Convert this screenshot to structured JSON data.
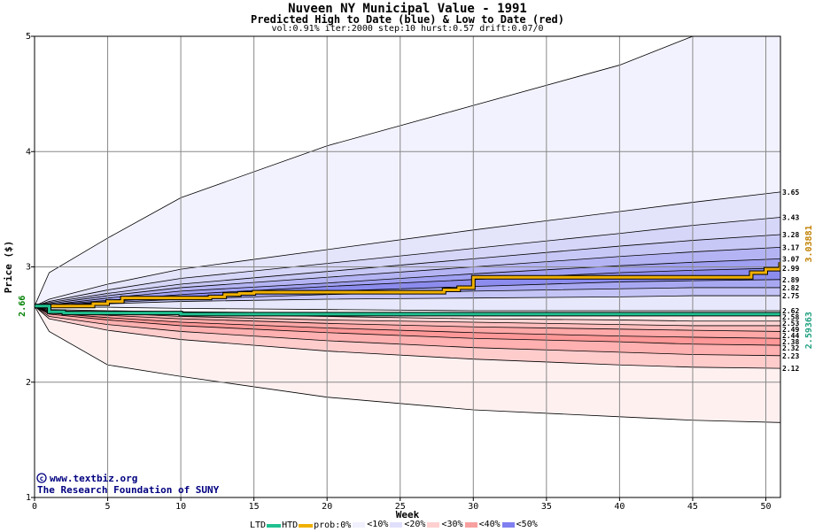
{
  "header": {
    "title": "Nuveen NY Municipal Value - 1991",
    "subtitle": "Predicted High to Date (blue) &  Low to Date (red)",
    "params": "vol:0.91% iter:2000 step:10 hurst:0.57 drift:0.07/0"
  },
  "credit": {
    "website": "www.textbiz.org",
    "organization": "The Research Foundation of SUNY"
  },
  "legend": {
    "ltd_label": "LTD",
    "htd_label": "HTD",
    "prob_label": "prob:0%",
    "bands": [
      {
        "label": "<10%",
        "color": "#f0f0ff"
      },
      {
        "label": "<20%",
        "color": "#e0e0fc"
      },
      {
        "label": "<30%",
        "color": "#ffd0d0"
      },
      {
        "label": "<40%",
        "color": "#f8a0a0"
      },
      {
        "label": "<50%",
        "color": "#8080f0"
      }
    ]
  },
  "colors": {
    "ltd_line": "#20c090",
    "htd_line": "#f0b000",
    "axis": "#000000",
    "grid": "#888888",
    "start_label": "#008000",
    "ltd_end_label": "#20a080",
    "htd_end_label": "#c08000"
  },
  "chart_data": {
    "type": "area",
    "xlabel": "Week",
    "ylabel": "Price ($)",
    "xlim": [
      0,
      51
    ],
    "ylim": [
      1,
      5
    ],
    "xticks": [
      0,
      5,
      10,
      15,
      20,
      25,
      30,
      35,
      40,
      45,
      50
    ],
    "yticks": [
      1,
      2,
      3,
      4,
      5
    ],
    "grid": true,
    "start_value": "2.66",
    "ltd_end_value": "2.59363",
    "htd_end_value": "3.03881",
    "right_labels": [
      "3.65",
      "3.43",
      "3.28",
      "3.17",
      "3.07",
      "2.99",
      "2.89",
      "2.82",
      "2.75",
      "2.62",
      "2.58",
      "2.53",
      "2.49",
      "2.44",
      "2.38",
      "2.32",
      "2.23",
      "2.12"
    ],
    "x": [
      0,
      1,
      5,
      10,
      20,
      30,
      40,
      45,
      51
    ],
    "blue_quantiles": [
      {
        "prob": "0%",
        "values": [
          2.66,
          2.95,
          3.25,
          3.6,
          4.05,
          4.4,
          4.75,
          5.0,
          5.0
        ]
      },
      {
        "prob": "<10%",
        "values": [
          2.66,
          2.72,
          2.85,
          2.98,
          3.15,
          3.32,
          3.48,
          3.56,
          3.65
        ]
      },
      {
        "prob": "<10%",
        "values": [
          2.66,
          2.7,
          2.8,
          2.9,
          3.03,
          3.16,
          3.29,
          3.36,
          3.43
        ]
      },
      {
        "prob": "<20%",
        "values": [
          2.66,
          2.69,
          2.77,
          2.85,
          2.96,
          3.07,
          3.18,
          3.23,
          3.28
        ]
      },
      {
        "prob": "<20%",
        "values": [
          2.66,
          2.68,
          2.75,
          2.82,
          2.91,
          3.0,
          3.09,
          3.13,
          3.17
        ]
      },
      {
        "prob": "<30%",
        "values": [
          2.66,
          2.67,
          2.73,
          2.79,
          2.86,
          2.94,
          3.01,
          3.04,
          3.07
        ]
      },
      {
        "prob": "<40%",
        "values": [
          2.66,
          2.67,
          2.71,
          2.76,
          2.83,
          2.89,
          2.95,
          2.97,
          2.99
        ]
      },
      {
        "prob": "<40%",
        "values": [
          2.66,
          2.66,
          2.7,
          2.74,
          2.79,
          2.83,
          2.87,
          2.88,
          2.89
        ]
      },
      {
        "prob": "<50%",
        "values": [
          2.66,
          2.66,
          2.69,
          2.72,
          2.76,
          2.79,
          2.81,
          2.82,
          2.82
        ]
      },
      {
        "prob": "<50%",
        "values": [
          2.66,
          2.66,
          2.68,
          2.7,
          2.72,
          2.73,
          2.74,
          2.75,
          2.75
        ]
      },
      {
        "prob": "<50%",
        "values": [
          2.66,
          2.65,
          2.65,
          2.64,
          2.63,
          2.62,
          2.62,
          2.62,
          2.62
        ]
      }
    ],
    "red_quantiles": [
      {
        "prob": "<50%",
        "values": [
          2.66,
          2.63,
          2.62,
          2.61,
          2.6,
          2.59,
          2.58,
          2.58,
          2.58
        ]
      },
      {
        "prob": "<50%",
        "values": [
          2.66,
          2.62,
          2.61,
          2.59,
          2.57,
          2.55,
          2.54,
          2.53,
          2.53
        ]
      },
      {
        "prob": "<40%",
        "values": [
          2.66,
          2.61,
          2.6,
          2.57,
          2.54,
          2.52,
          2.5,
          2.49,
          2.49
        ]
      },
      {
        "prob": "<40%",
        "values": [
          2.66,
          2.61,
          2.58,
          2.55,
          2.51,
          2.48,
          2.46,
          2.45,
          2.44
        ]
      },
      {
        "prob": "<30%",
        "values": [
          2.66,
          2.6,
          2.56,
          2.52,
          2.47,
          2.43,
          2.4,
          2.39,
          2.38
        ]
      },
      {
        "prob": "<30%",
        "values": [
          2.66,
          2.59,
          2.54,
          2.49,
          2.43,
          2.38,
          2.35,
          2.33,
          2.32
        ]
      },
      {
        "prob": "<20%",
        "values": [
          2.66,
          2.57,
          2.5,
          2.44,
          2.36,
          2.3,
          2.26,
          2.24,
          2.23
        ]
      },
      {
        "prob": "<10%",
        "values": [
          2.66,
          2.55,
          2.45,
          2.37,
          2.27,
          2.2,
          2.15,
          2.13,
          2.12
        ]
      },
      {
        "prob": "0%",
        "values": [
          2.66,
          2.44,
          2.15,
          2.05,
          1.87,
          1.76,
          1.7,
          1.67,
          1.65
        ]
      }
    ],
    "band_fills": {
      "blue": [
        "#f2f2ff",
        "#e4e4fb",
        "#d6d6f8",
        "#c8c8f6",
        "#b4b4f4",
        "#a0a0f2",
        "#8c8cee",
        "#a8a8f2",
        "#c4c4f6",
        "#e8e8fc"
      ],
      "red": [
        "#ffe8e8",
        "#ffd4d4",
        "#ffbcbc",
        "#ffa8a8",
        "#ff9898",
        "#ffb0b0",
        "#ffcccc",
        "#fff0f0"
      ]
    },
    "series": [
      {
        "name": "HTD",
        "x": [
          0,
          3,
          4,
          5,
          6,
          12,
          13,
          14,
          15,
          28,
          29,
          30,
          48,
          49,
          50,
          51
        ],
        "values": [
          2.66,
          2.66,
          2.68,
          2.7,
          2.73,
          2.74,
          2.76,
          2.77,
          2.78,
          2.8,
          2.82,
          2.91,
          2.91,
          2.95,
          2.98,
          3.04
        ]
      },
      {
        "name": "LTD",
        "x": [
          0,
          1,
          2,
          5,
          10,
          20,
          51
        ],
        "values": [
          2.66,
          2.61,
          2.6,
          2.6,
          2.59,
          2.59,
          2.59
        ]
      }
    ]
  }
}
